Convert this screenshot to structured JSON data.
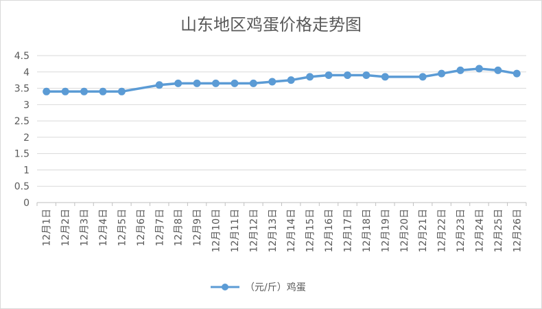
{
  "chart_data": {
    "type": "line",
    "title": "山东地区鸡蛋价格走势图",
    "xlabel": "",
    "ylabel": "",
    "categories": [
      "12月1日",
      "12月2日",
      "12月3日",
      "12月4日",
      "12月5日",
      "12月6日",
      "12月7日",
      "12月8日",
      "12月9日",
      "12月10日",
      "12月11日",
      "12月12日",
      "12月13日",
      "12月14日",
      "12月15日",
      "12月16日",
      "12月17日",
      "12月18日",
      "12月19日",
      "12月20日",
      "12月21日",
      "12月22日",
      "12月23日",
      "12月24日",
      "12月25日",
      "12月26日"
    ],
    "series": [
      {
        "name": "（元/斤）鸡蛋",
        "color": "#5b9bd5",
        "values": [
          3.4,
          3.4,
          3.4,
          3.4,
          3.4,
          null,
          3.6,
          3.65,
          3.65,
          3.65,
          3.65,
          3.65,
          3.7,
          3.75,
          3.85,
          3.9,
          3.9,
          3.9,
          3.85,
          null,
          3.85,
          3.95,
          4.05,
          4.1,
          4.05,
          3.95
        ]
      }
    ],
    "ylim": [
      0,
      4.5
    ],
    "yticks": [
      0,
      0.5,
      1,
      1.5,
      2,
      2.5,
      3,
      3.5,
      4,
      4.5
    ],
    "ytick_labels": [
      "0",
      "0.5",
      "1",
      "1.5",
      "2",
      "2.5",
      "3",
      "3.5",
      "4",
      "4.5"
    ],
    "grid": true,
    "legend_position": "bottom"
  }
}
